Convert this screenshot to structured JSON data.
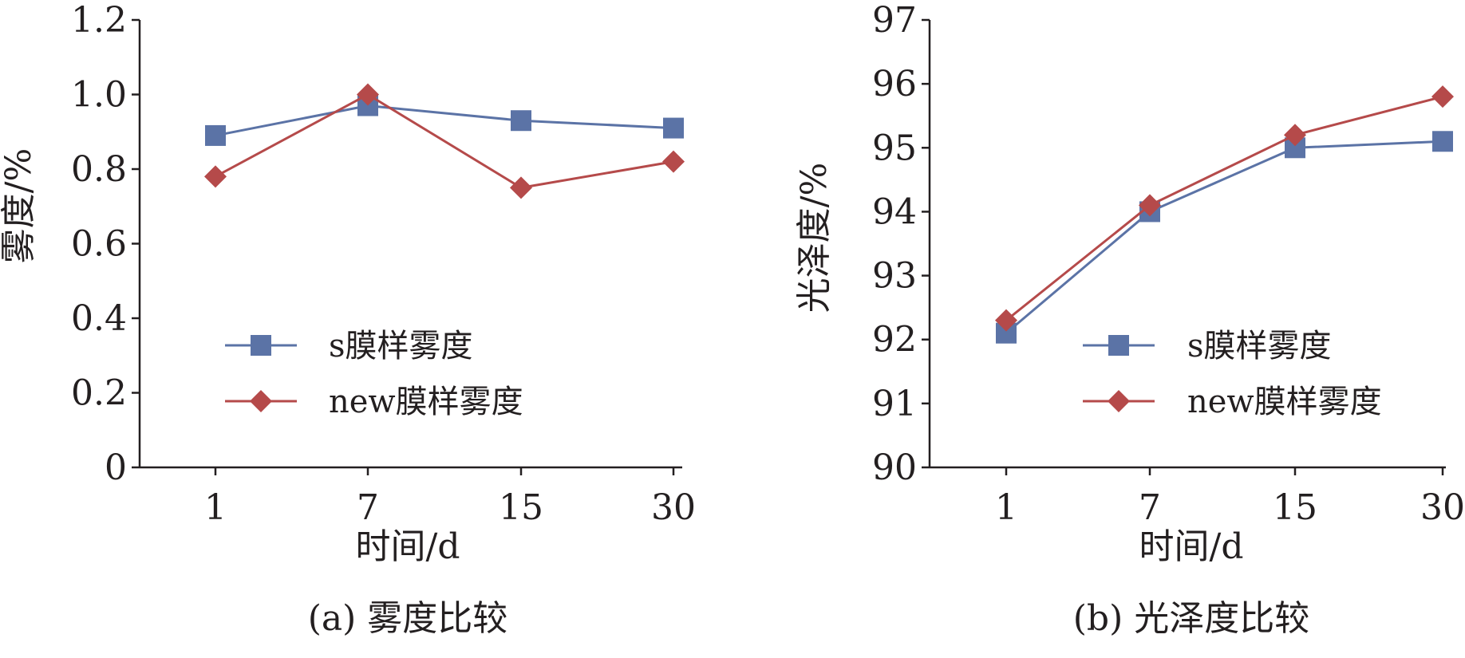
{
  "chart_data": [
    {
      "type": "line",
      "caption": "(a) 雾度比较",
      "xlabel": "时间/d",
      "ylabel": "雾度/%",
      "categories": [
        "1",
        "7",
        "15",
        "30"
      ],
      "ylim": [
        0,
        1.2
      ],
      "yticks": [
        "0",
        "0.2",
        "0.4",
        "0.6",
        "0.8",
        "1.0",
        "1.2"
      ],
      "grid": false,
      "legend_position": "bottom-center",
      "series": [
        {
          "name": "s膜样雾度",
          "marker": "square",
          "color": "#5b73a6",
          "values": [
            0.89,
            0.97,
            0.93,
            0.91
          ]
        },
        {
          "name": "new膜样雾度",
          "marker": "diamond",
          "color": "#b54a4a",
          "values": [
            0.78,
            1.0,
            0.75,
            0.82
          ]
        }
      ]
    },
    {
      "type": "line",
      "caption": "(b) 光泽度比较",
      "xlabel": "时间/d",
      "ylabel": "光泽度/%",
      "categories": [
        "1",
        "7",
        "15",
        "30"
      ],
      "ylim": [
        90,
        97
      ],
      "yticks": [
        "90",
        "91",
        "92",
        "93",
        "94",
        "95",
        "96",
        "97"
      ],
      "grid": false,
      "legend_position": "bottom-right",
      "series": [
        {
          "name": "s膜样雾度",
          "marker": "square",
          "color": "#5b73a6",
          "values": [
            92.1,
            94.0,
            95.0,
            95.1
          ]
        },
        {
          "name": "new膜样雾度",
          "marker": "diamond",
          "color": "#b54a4a",
          "values": [
            92.3,
            94.1,
            95.2,
            95.8
          ]
        }
      ]
    }
  ]
}
